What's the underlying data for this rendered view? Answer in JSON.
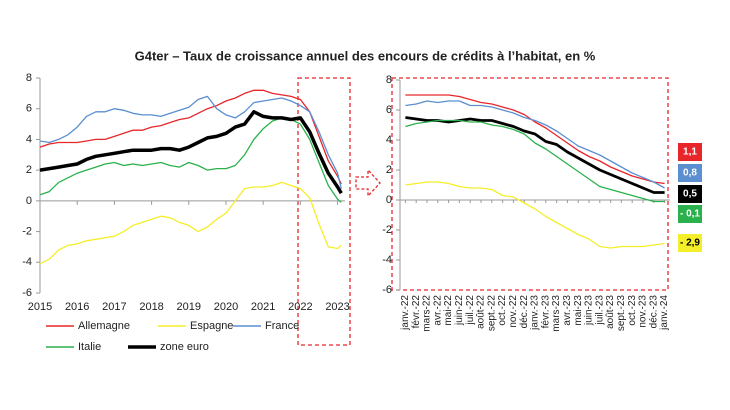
{
  "title": "G4ter – Taux de croissance annuel des encours de crédits à l’habitat, en %",
  "chart_data": [
    {
      "type": "line",
      "xlim": [
        2015,
        2023.2
      ],
      "xticks": [
        2015,
        2016,
        2017,
        2018,
        2019,
        2020,
        2021,
        2022,
        2023
      ],
      "ylim": [
        -6,
        8
      ],
      "yticks": [
        -6,
        -4,
        -2,
        0,
        2,
        4,
        6,
        8
      ],
      "x": [
        2015,
        2015.25,
        2015.5,
        2015.75,
        2016,
        2016.25,
        2016.5,
        2016.75,
        2017,
        2017.25,
        2017.5,
        2017.75,
        2018,
        2018.25,
        2018.5,
        2018.75,
        2019,
        2019.25,
        2019.5,
        2019.75,
        2020,
        2020.25,
        2020.5,
        2020.75,
        2021,
        2021.25,
        2021.5,
        2021.75,
        2022,
        2022.25,
        2022.5,
        2022.75,
        2023,
        2023.1
      ],
      "series": [
        {
          "name": "Allemagne",
          "color": "#e8262a",
          "values": [
            3.5,
            3.7,
            3.8,
            3.8,
            3.8,
            3.9,
            4.0,
            4.0,
            4.2,
            4.4,
            4.6,
            4.6,
            4.8,
            4.9,
            5.1,
            5.3,
            5.4,
            5.7,
            6.0,
            6.2,
            6.5,
            6.7,
            7.0,
            7.2,
            7.2,
            7.0,
            6.9,
            6.8,
            6.6,
            5.8,
            4.2,
            2.6,
            1.6,
            1.1
          ]
        },
        {
          "name": "Espagne",
          "color": "#f5ee2a",
          "values": [
            -4.1,
            -3.8,
            -3.2,
            -2.9,
            -2.8,
            -2.6,
            -2.5,
            -2.4,
            -2.3,
            -2.0,
            -1.6,
            -1.4,
            -1.2,
            -1.0,
            -1.1,
            -1.4,
            -1.6,
            -2.0,
            -1.7,
            -1.2,
            -0.8,
            0.0,
            0.8,
            0.9,
            0.9,
            1.0,
            1.2,
            1.0,
            0.8,
            0.2,
            -1.5,
            -3.0,
            -3.1,
            -2.9
          ]
        },
        {
          "name": "France",
          "color": "#5b8fd0",
          "values": [
            3.9,
            3.8,
            4.0,
            4.3,
            4.8,
            5.5,
            5.8,
            5.8,
            6.0,
            5.9,
            5.7,
            5.6,
            5.6,
            5.5,
            5.7,
            5.9,
            6.1,
            6.6,
            6.8,
            6.0,
            5.6,
            5.4,
            5.8,
            6.4,
            6.5,
            6.6,
            6.7,
            6.5,
            6.2,
            5.8,
            4.5,
            3.0,
            1.8,
            0.8
          ]
        },
        {
          "name": "Italie",
          "color": "#2bb14c",
          "values": [
            0.4,
            0.6,
            1.2,
            1.5,
            1.8,
            2.0,
            2.2,
            2.4,
            2.5,
            2.3,
            2.4,
            2.3,
            2.4,
            2.5,
            2.3,
            2.2,
            2.5,
            2.3,
            2.0,
            2.1,
            2.1,
            2.3,
            3.0,
            4.0,
            4.7,
            5.2,
            5.4,
            5.3,
            5.0,
            4.0,
            2.5,
            1.0,
            0.1,
            -0.1
          ]
        },
        {
          "name": "zone euro",
          "color": "#000000",
          "values": [
            2.0,
            2.1,
            2.2,
            2.3,
            2.4,
            2.7,
            2.9,
            3.0,
            3.1,
            3.2,
            3.3,
            3.3,
            3.3,
            3.4,
            3.4,
            3.3,
            3.5,
            3.8,
            4.1,
            4.2,
            4.4,
            4.8,
            5.0,
            5.8,
            5.5,
            5.4,
            5.4,
            5.3,
            5.4,
            4.5,
            3.1,
            1.8,
            0.9,
            0.5
          ]
        }
      ]
    },
    {
      "type": "line",
      "ylim": [
        -6,
        8
      ],
      "yticks": [
        -6,
        -4,
        -2,
        0,
        2,
        4,
        6,
        8
      ],
      "categories": [
        "janv.-22",
        "févr.-22",
        "mars-22",
        "avr.-22",
        "mai-22",
        "juin-22",
        "juil.-22",
        "août-22",
        "sept.-22",
        "oct.-22",
        "nov.-22",
        "déc.-22",
        "janv.-23",
        "févr.-23",
        "mars-23",
        "avr.-23",
        "mai-23",
        "juin-23",
        "juil.-23",
        "août-23",
        "sept.-23",
        "oct.-23",
        "nov.-23",
        "déc.-23",
        "janv.-24"
      ],
      "series": [
        {
          "color": "#e8262a",
          "values": [
            7.0,
            7.0,
            7.0,
            7.0,
            7.0,
            6.9,
            6.7,
            6.5,
            6.4,
            6.2,
            6.0,
            5.7,
            5.2,
            4.8,
            4.3,
            3.8,
            3.3,
            2.9,
            2.6,
            2.2,
            1.9,
            1.6,
            1.4,
            1.2,
            1.1
          ],
          "value_labels": [
            null,
            null,
            null,
            null,
            null,
            null,
            null,
            null,
            null,
            null,
            null,
            null,
            null,
            null,
            null,
            null,
            null,
            null,
            null,
            null,
            null,
            null,
            null,
            null,
            "1,1"
          ]
        },
        {
          "color": "#5b8fd0",
          "values": [
            6.3,
            6.4,
            6.6,
            6.5,
            6.6,
            6.6,
            6.3,
            6.3,
            6.2,
            6.0,
            5.8,
            5.5,
            5.3,
            5.0,
            4.6,
            4.1,
            3.6,
            3.3,
            3.0,
            2.6,
            2.2,
            1.8,
            1.5,
            1.2,
            0.8
          ],
          "value_labels": [
            null,
            null,
            null,
            null,
            null,
            null,
            null,
            null,
            null,
            null,
            null,
            null,
            null,
            null,
            null,
            null,
            null,
            null,
            null,
            null,
            null,
            null,
            null,
            null,
            "0,8"
          ]
        },
        {
          "color": "#000000",
          "values": [
            5.5,
            5.4,
            5.3,
            5.3,
            5.2,
            5.3,
            5.4,
            5.3,
            5.3,
            5.1,
            4.9,
            4.6,
            4.4,
            3.9,
            3.7,
            3.2,
            2.8,
            2.4,
            2.0,
            1.7,
            1.4,
            1.1,
            0.8,
            0.5,
            0.5
          ],
          "value_labels": [
            null,
            null,
            null,
            null,
            null,
            null,
            null,
            null,
            null,
            null,
            null,
            null,
            null,
            null,
            null,
            null,
            null,
            null,
            null,
            null,
            null,
            null,
            null,
            null,
            "0,5"
          ]
        },
        {
          "color": "#2bb14c",
          "values": [
            4.9,
            5.1,
            5.2,
            5.3,
            5.3,
            5.3,
            5.2,
            5.2,
            5.0,
            4.9,
            4.7,
            4.4,
            3.8,
            3.4,
            2.9,
            2.4,
            1.9,
            1.4,
            0.9,
            0.7,
            0.5,
            0.3,
            0.1,
            -0.1,
            -0.1
          ],
          "value_labels": [
            null,
            null,
            null,
            null,
            null,
            null,
            null,
            null,
            null,
            null,
            null,
            null,
            null,
            null,
            null,
            null,
            null,
            null,
            null,
            null,
            null,
            null,
            null,
            null,
            "- 0,1"
          ]
        },
        {
          "color": "#f5ee2a",
          "values": [
            1.0,
            1.1,
            1.2,
            1.2,
            1.1,
            0.9,
            0.8,
            0.8,
            0.7,
            0.3,
            0.2,
            -0.2,
            -0.6,
            -1.1,
            -1.5,
            -1.9,
            -2.3,
            -2.6,
            -3.1,
            -3.2,
            -3.1,
            -3.1,
            -3.1,
            -3.0,
            -2.9
          ],
          "value_labels": [
            null,
            null,
            null,
            null,
            null,
            null,
            null,
            null,
            null,
            null,
            null,
            null,
            null,
            null,
            null,
            null,
            null,
            null,
            null,
            null,
            null,
            null,
            null,
            null,
            "- 2,9"
          ]
        }
      ]
    }
  ]
}
